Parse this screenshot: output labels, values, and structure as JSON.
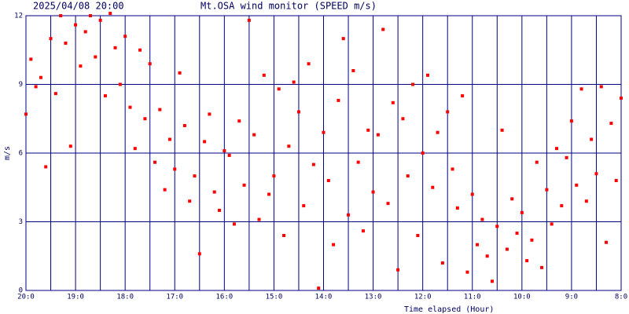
{
  "chart_data": {
    "type": "scatter",
    "date_title": "2025/04/08 20:00",
    "title": "Mt.OSA wind monitor (SPEED m/s)",
    "x_label": "Time elapsed (Hour)",
    "y_label": "m/s",
    "xlim": [
      20,
      8
    ],
    "ylim": [
      0,
      12
    ],
    "xticks": [
      {
        "value": 20,
        "label": "20:0"
      },
      {
        "value": 19,
        "label": "19:0"
      },
      {
        "value": 18,
        "label": "18:0"
      },
      {
        "value": 17,
        "label": "17:0"
      },
      {
        "value": 16,
        "label": "16:0"
      },
      {
        "value": 15,
        "label": "15:0"
      },
      {
        "value": 14,
        "label": "14:0"
      },
      {
        "value": 13,
        "label": "13:0"
      },
      {
        "value": 12,
        "label": "12:0"
      },
      {
        "value": 11,
        "label": "11:0"
      },
      {
        "value": 10,
        "label": "10:0"
      },
      {
        "value": 9,
        "label": "9:0"
      },
      {
        "value": 8,
        "label": "8:0"
      }
    ],
    "x_minor_grid": [
      19.5,
      18.5,
      17.5,
      16.5,
      15.5,
      14.5,
      13.5,
      12.5,
      11.5,
      10.5,
      9.5,
      8.5
    ],
    "yticks": [
      0,
      3,
      6,
      9,
      12
    ],
    "grid": true,
    "grid_color": "#000080",
    "series": [
      {
        "name": "SPEED",
        "color": "#ff0000",
        "x": [
          20.0,
          19.9,
          19.8,
          19.7,
          19.6,
          19.5,
          19.4,
          19.3,
          19.2,
          19.1,
          19.0,
          18.9,
          18.8,
          18.7,
          18.6,
          18.5,
          18.4,
          18.3,
          18.2,
          18.1,
          18.0,
          17.9,
          17.8,
          17.7,
          17.6,
          17.5,
          17.4,
          17.3,
          17.2,
          17.1,
          17.0,
          16.9,
          16.8,
          16.7,
          16.6,
          16.5,
          16.4,
          16.3,
          16.2,
          16.1,
          16.0,
          15.9,
          15.8,
          15.7,
          15.6,
          15.5,
          15.4,
          15.3,
          15.2,
          15.1,
          15.0,
          14.9,
          14.8,
          14.7,
          14.6,
          14.5,
          14.4,
          14.3,
          14.2,
          14.1,
          14.0,
          13.9,
          13.8,
          13.7,
          13.6,
          13.5,
          13.4,
          13.3,
          13.2,
          13.1,
          13.0,
          12.9,
          12.8,
          12.7,
          12.6,
          12.5,
          12.4,
          12.3,
          12.2,
          12.1,
          12.0,
          11.9,
          11.8,
          11.7,
          11.6,
          11.5,
          11.4,
          11.3,
          11.2,
          11.1,
          11.0,
          10.9,
          10.8,
          10.7,
          10.6,
          10.5,
          10.4,
          10.3,
          10.2,
          10.1,
          10.0,
          9.9,
          9.8,
          9.7,
          9.6,
          9.5,
          9.4,
          9.3,
          9.2,
          9.1,
          9.0,
          8.9,
          8.8,
          8.7,
          8.6,
          8.5,
          8.4,
          8.3,
          8.2,
          8.1,
          8.0
        ],
        "values": [
          7.7,
          10.1,
          8.9,
          9.3,
          5.4,
          11.0,
          8.6,
          12.0,
          10.8,
          6.3,
          11.6,
          9.8,
          11.3,
          12.0,
          10.2,
          11.8,
          8.5,
          12.1,
          10.6,
          9.0,
          11.1,
          8.0,
          6.2,
          10.5,
          7.5,
          9.9,
          5.6,
          7.9,
          4.4,
          6.6,
          5.3,
          9.5,
          7.2,
          3.9,
          5.0,
          1.6,
          6.5,
          7.7,
          4.3,
          3.5,
          6.1,
          5.9,
          2.9,
          7.4,
          4.6,
          11.8,
          6.8,
          3.1,
          9.4,
          4.2,
          5.0,
          8.8,
          2.4,
          6.3,
          9.1,
          7.8,
          3.7,
          9.9,
          5.5,
          0.1,
          6.9,
          4.8,
          2.0,
          8.3,
          11.0,
          3.3,
          9.6,
          5.6,
          2.6,
          7.0,
          4.3,
          6.8,
          11.4,
          3.8,
          8.2,
          0.9,
          7.5,
          5.0,
          9.0,
          2.4,
          6.0,
          9.4,
          4.5,
          6.9,
          1.2,
          7.8,
          5.3,
          3.6,
          8.5,
          0.8,
          4.2,
          2.0,
          3.1,
          1.5,
          0.4,
          2.8,
          7.0,
          1.8,
          4.0,
          2.5,
          3.4,
          1.3,
          2.2,
          5.6,
          1.0,
          4.4,
          2.9,
          6.2,
          3.7,
          5.8,
          7.4,
          4.6,
          8.8,
          3.9,
          6.6,
          5.1,
          8.9,
          2.1,
          7.3,
          4.8,
          8.4
        ]
      }
    ]
  }
}
